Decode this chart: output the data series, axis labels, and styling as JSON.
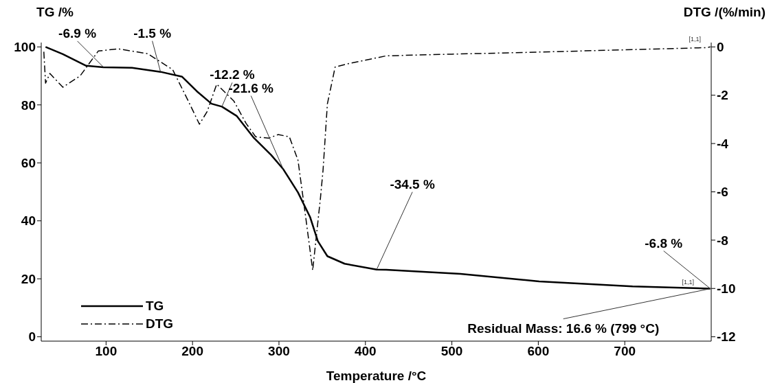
{
  "chart_data": {
    "type": "line",
    "xlabel": "Temperature /°C",
    "ylabel": "TG /%",
    "y2label": "DTG /(%/min)",
    "xlim": [
      25,
      800
    ],
    "xticks": [
      100,
      200,
      300,
      400,
      500,
      600,
      700
    ],
    "ylim": [
      -1.5,
      101.5
    ],
    "yticks": [
      0,
      20,
      40,
      60,
      80,
      100
    ],
    "y2lim": [
      -12.18,
      0.18
    ],
    "y2ticks": [
      -12,
      -10,
      -8,
      -6,
      -4,
      -2,
      0
    ],
    "grid": false,
    "legend": "bottom left",
    "marker": "none",
    "series": [
      {
        "name": "TG",
        "color": "#000000",
        "line_style": "solid",
        "x": [
          30,
          50,
          77,
          97,
          130,
          163,
          188,
          205,
          222,
          234,
          251,
          271,
          291,
          305,
          322,
          336,
          345,
          356,
          376,
          413,
          424,
          510,
          601,
          709,
          799
        ],
        "values": [
          100,
          97.5,
          93.5,
          93.0,
          92.8,
          91.4,
          89.7,
          84.7,
          80.4,
          79.4,
          76.2,
          68.6,
          62.7,
          57.8,
          49.8,
          41.3,
          33.0,
          27.8,
          25.2,
          23.2,
          23.1,
          21.7,
          19.1,
          17.4,
          16.6
        ]
      },
      {
        "name": "DTG",
        "color": "#000000",
        "line_style": "dashed",
        "axis": "y2",
        "x": [
          28,
          30,
          35,
          50,
          70,
          91,
          114,
          148,
          177,
          194,
          208,
          217,
          228,
          248,
          262,
          273,
          288,
          299,
          312,
          322,
          331,
          339,
          348,
          351,
          356,
          365,
          382,
          424,
          500,
          584,
          700,
          795,
          799
        ],
        "values": [
          -0.2,
          -1.5,
          -1.1,
          -1.67,
          -1.2,
          -0.17,
          -0.08,
          -0.28,
          -0.94,
          -2.16,
          -3.2,
          -2.67,
          -1.54,
          -2.25,
          -3.17,
          -3.72,
          -3.78,
          -3.63,
          -3.72,
          -4.69,
          -7.07,
          -9.25,
          -6.25,
          -5.1,
          -2.36,
          -0.83,
          -0.68,
          -0.37,
          -0.3,
          -0.23,
          -0.12,
          -0.03,
          0
        ]
      }
    ],
    "annotations": [
      {
        "text": "-6.9 %",
        "x": 97,
        "y": 93.0
      },
      {
        "text": "-1.5 %",
        "x": 163,
        "y": 91.4
      },
      {
        "text": "-12.2 %",
        "x": 234,
        "y": 79.4
      },
      {
        "text": "-21.6 %",
        "x": 305,
        "y": 57.8
      },
      {
        "text": "-34.5 %",
        "x": 413,
        "y": 23.2
      },
      {
        "text": "-6.8 %",
        "x": 799,
        "y": 16.6
      },
      {
        "text": "Residual Mass: 16.6 % (799 °C)",
        "x": 799,
        "y": 16.6
      },
      "[1,1]",
      "[1,1]"
    ]
  }
}
